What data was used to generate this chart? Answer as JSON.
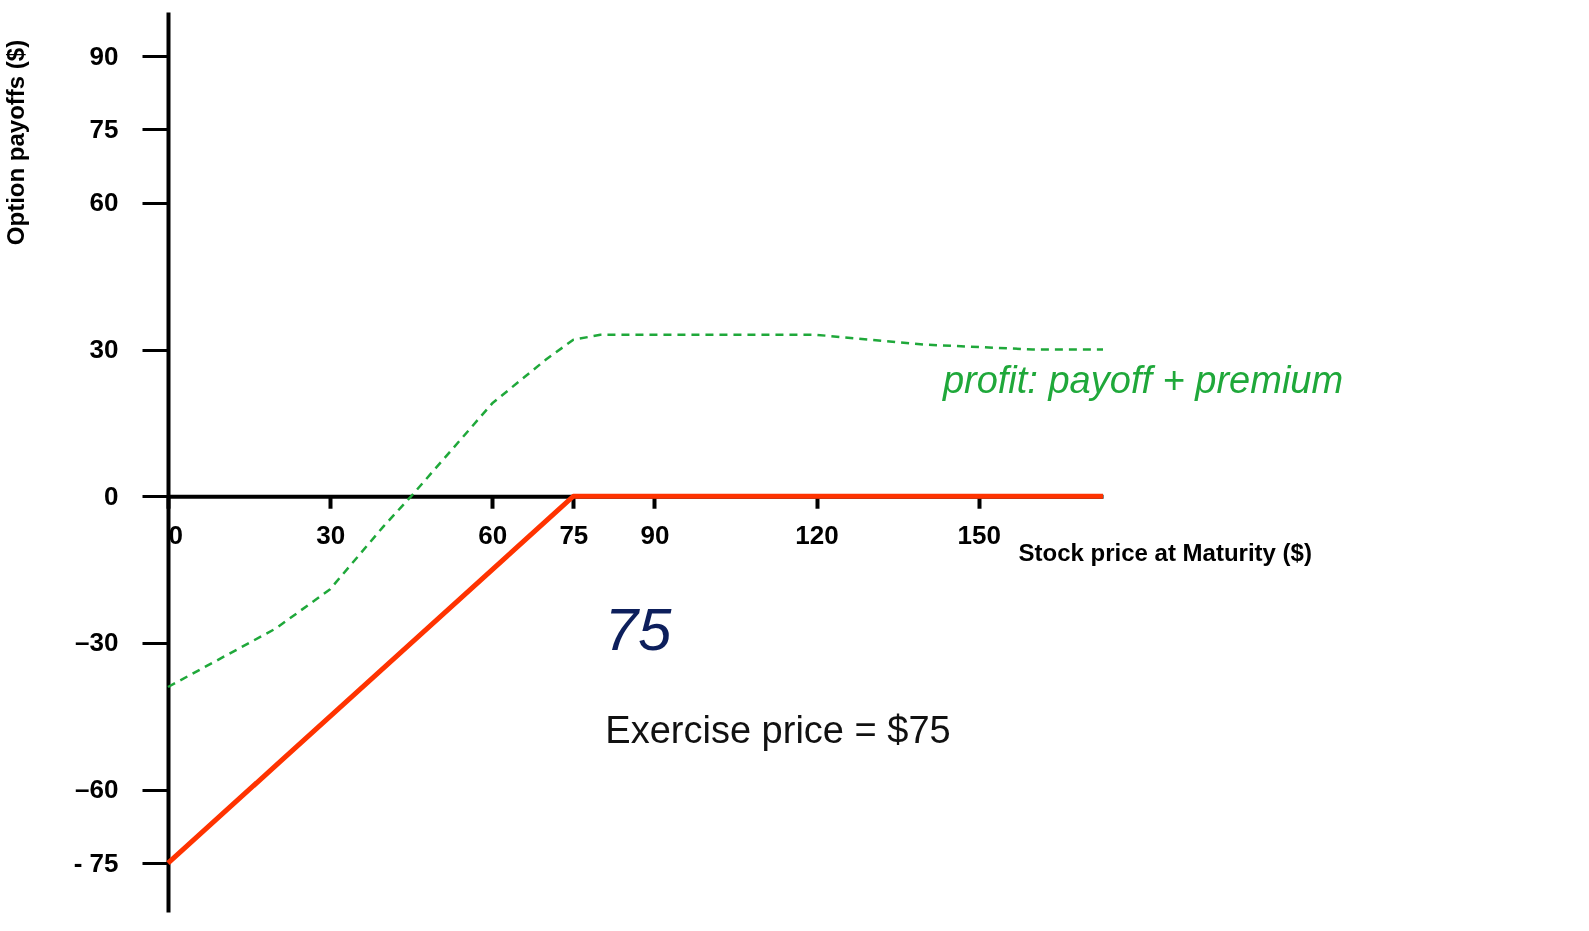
{
  "chart_data": {
    "type": "line",
    "xlabel": "Stock price at Maturity ($)",
    "ylabel": "Option payoffs ($)",
    "xlim": [
      0,
      173
    ],
    "ylim": [
      -85,
      99
    ],
    "xticks": [
      0,
      30,
      60,
      75,
      90,
      120,
      150
    ],
    "yticks": [
      90,
      75,
      60,
      30,
      0,
      {
        "value": -30,
        "label": "–30"
      },
      {
        "value": -60,
        "label": "–60"
      },
      {
        "value": -75,
        "label": "- 75"
      }
    ],
    "grid": false,
    "marker": "none",
    "series": [
      {
        "color": "#ff3300",
        "x": [
          0,
          75,
          173
        ],
        "values": [
          -75,
          0,
          0
        ],
        "line_style": "solid"
      },
      {
        "color": "#1fa83a",
        "x": [
          0,
          10,
          20,
          30,
          40,
          45,
          60,
          70,
          75,
          80,
          100,
          120,
          140,
          160,
          173
        ],
        "values": [
          -39,
          -33,
          -27,
          -19,
          -6,
          0,
          19,
          28,
          32,
          33,
          33,
          33,
          31,
          30,
          30
        ],
        "line_style": "dashed"
      }
    ],
    "annotations": [
      "profit: payoff + premium",
      "75",
      "Exercise price = $75"
    ]
  }
}
